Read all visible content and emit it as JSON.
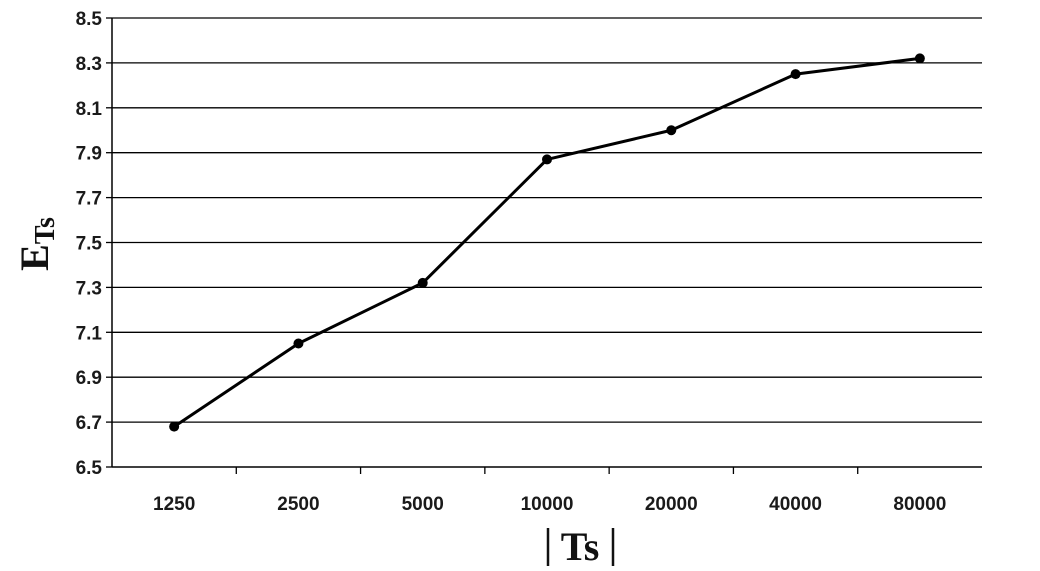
{
  "chart_data": {
    "type": "line",
    "title": "",
    "xlabel": "|Ts|",
    "ylabel": "E",
    "ylabel_subscript": "Ts",
    "categories": [
      "1250",
      "2500",
      "5000",
      "10000",
      "20000",
      "40000",
      "80000"
    ],
    "series": [
      {
        "values": [
          6.68,
          7.05,
          7.32,
          7.87,
          8.0,
          8.25,
          8.32
        ]
      }
    ],
    "ylim": [
      6.5,
      8.5
    ],
    "yticks": [
      "6.5",
      "6.7",
      "6.9",
      "7.1",
      "7.3",
      "7.5",
      "7.7",
      "7.9",
      "8.1",
      "8.3",
      "8.5"
    ],
    "grid": "horizontal",
    "legend": "none",
    "colors": {
      "line": "#000000",
      "grid": "#000000",
      "marker": "#000000"
    }
  }
}
